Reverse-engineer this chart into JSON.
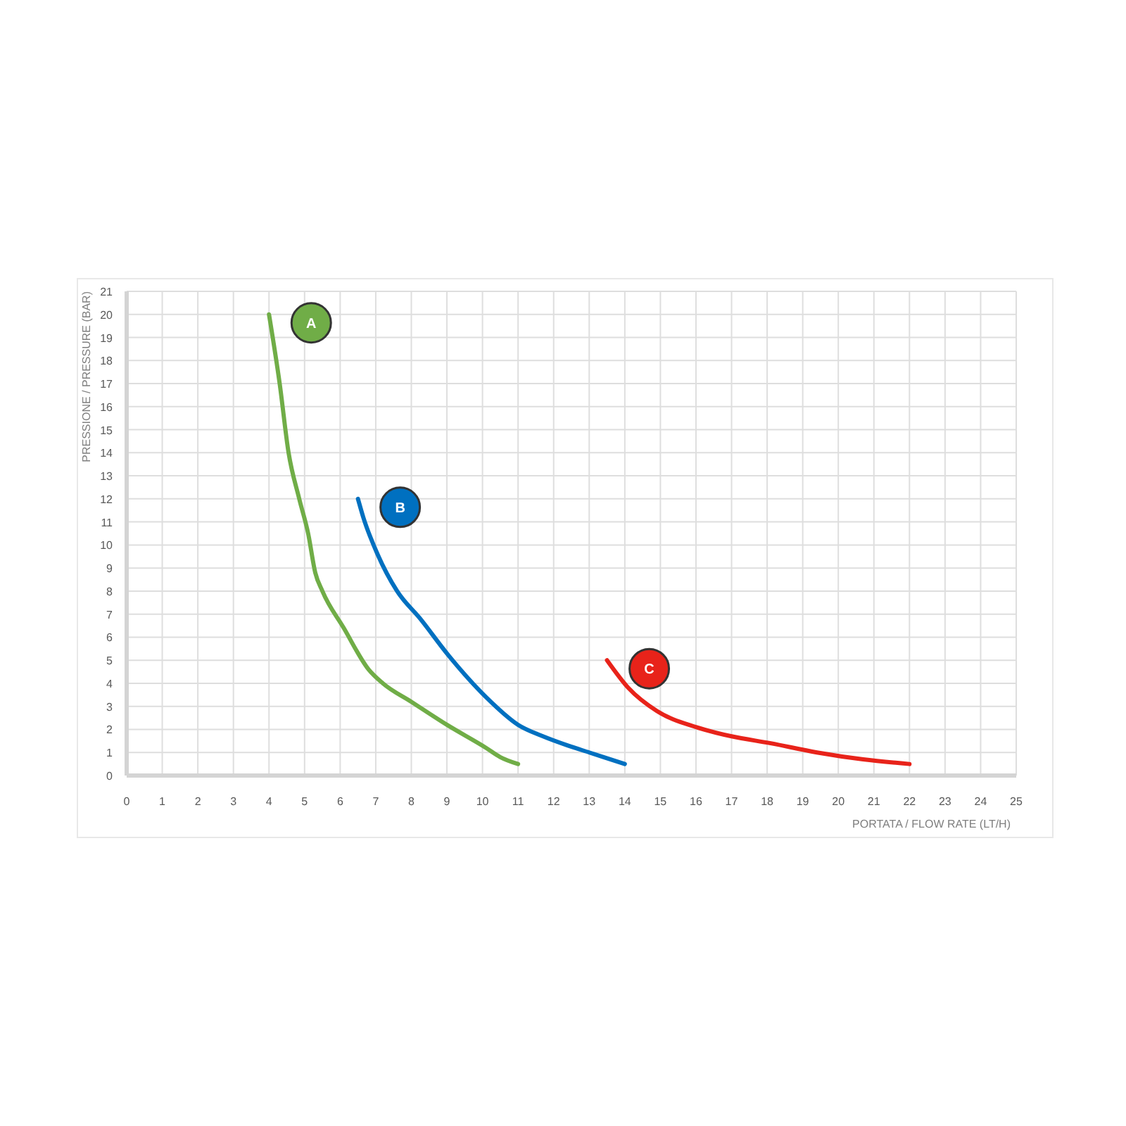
{
  "chart_data": {
    "type": "line",
    "xlabel": "PORTATA / FLOW RATE (LT/H)",
    "ylabel": "PRESSIONE / PRESSURE (BAR)",
    "xlim": [
      0,
      25
    ],
    "ylim": [
      0,
      21
    ],
    "xticks": [
      0,
      1,
      2,
      3,
      4,
      5,
      6,
      7,
      8,
      9,
      10,
      11,
      12,
      13,
      14,
      15,
      16,
      17,
      18,
      19,
      20,
      21,
      22,
      23,
      24,
      25
    ],
    "yticks": [
      0,
      1,
      2,
      3,
      4,
      5,
      6,
      7,
      8,
      9,
      10,
      11,
      12,
      13,
      14,
      15,
      16,
      17,
      18,
      19,
      20,
      21
    ],
    "grid": true,
    "line_style": "solid",
    "series": [
      {
        "name": "A",
        "color": "#70ad47",
        "x": [
          4,
          4.3,
          4.55,
          4.85,
          5.1,
          5.3,
          5.5,
          6.1,
          6.8,
          7.2,
          8,
          9,
          10.1,
          10.5,
          11
        ],
        "values": [
          20,
          17,
          14,
          12,
          10.5,
          8.8,
          8,
          6.4,
          4.6,
          4,
          3.2,
          2.2,
          1.2,
          0.8,
          0.5
        ]
      },
      {
        "name": "B",
        "color": "#0070c0",
        "x": [
          6.5,
          6.65,
          7.05,
          7.6,
          8.25,
          9.05,
          10.1,
          11,
          11.7,
          12.4,
          13,
          14
        ],
        "values": [
          12,
          11.2,
          9.6,
          8,
          6.8,
          5.2,
          3.4,
          2.2,
          1.7,
          1.3,
          1,
          0.5
        ]
      },
      {
        "name": "C",
        "color": "#e8231a",
        "x": [
          13.5,
          14.1,
          14.9,
          16,
          17,
          18.1,
          19.4,
          20.7,
          22
        ],
        "values": [
          5,
          3.8,
          2.8,
          2.1,
          1.7,
          1.4,
          1,
          0.7,
          0.5
        ]
      }
    ]
  }
}
